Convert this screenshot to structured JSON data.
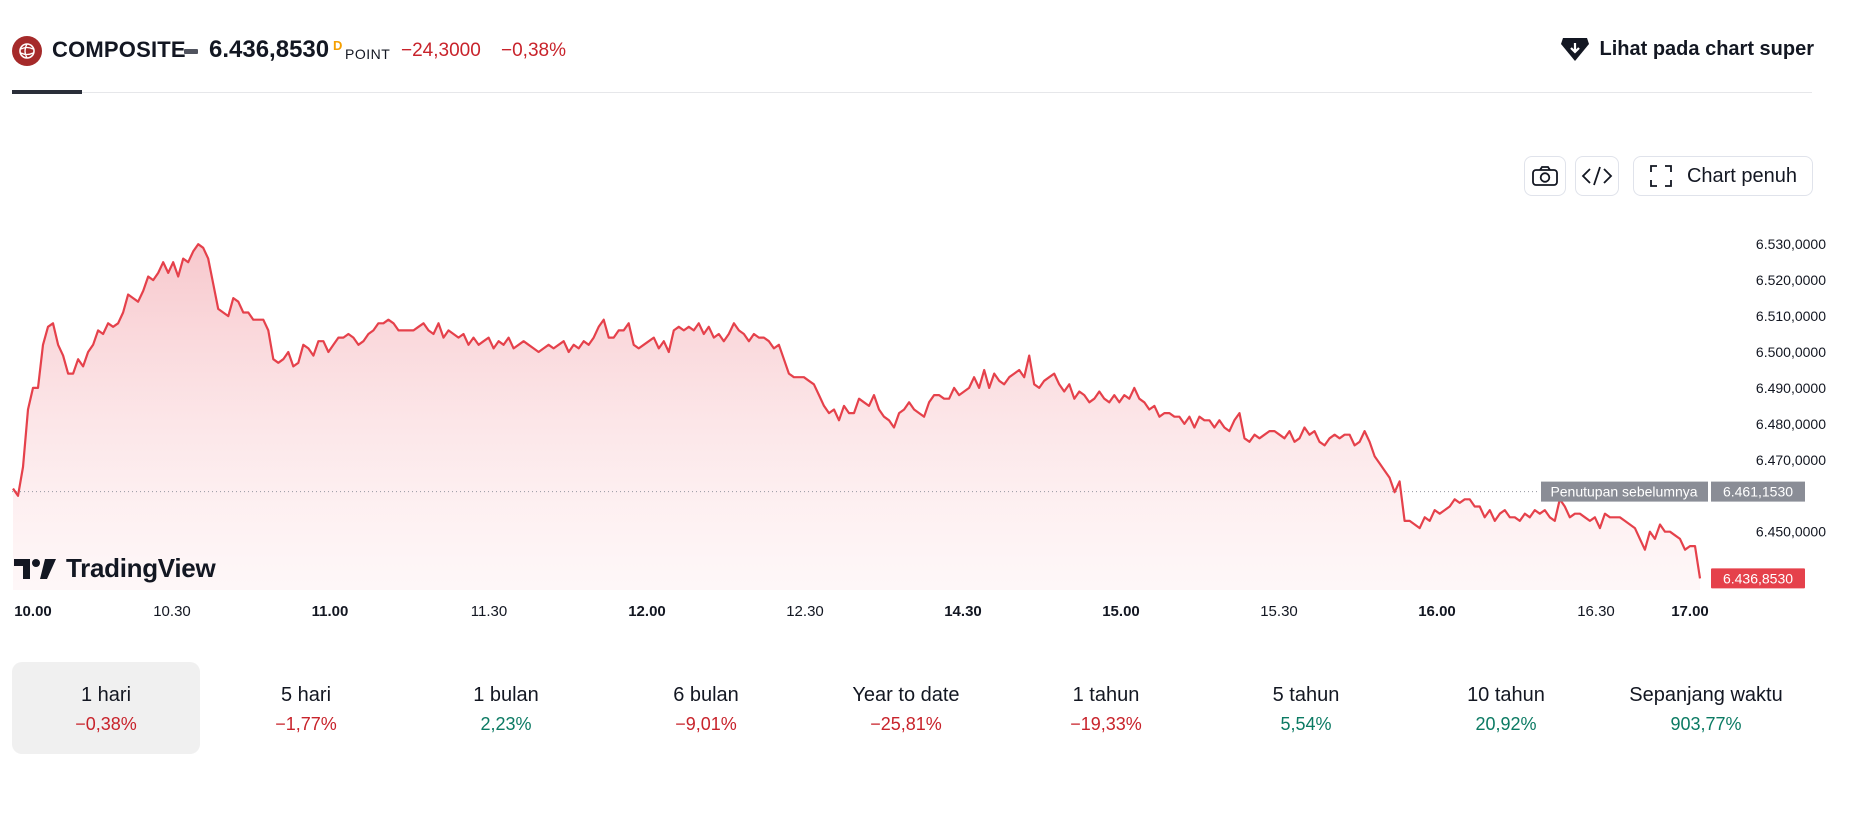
{
  "header": {
    "symbol": "COMPOSITE",
    "price": "6.436,8530",
    "price_superscript": "D",
    "unit": "POINT",
    "change": "−24,3000",
    "change_percent": "−0,38%",
    "super_chart_label": "Lihat pada chart super"
  },
  "toolbar": {
    "camera_icon": "camera-icon",
    "embed_icon": "code-embed-icon",
    "fullscreen_icon": "fullscreen-icon",
    "fullscreen_label": "Chart penuh"
  },
  "branding": {
    "name": "TradingView"
  },
  "chart_data": {
    "type": "area",
    "line_color": "#e5414b",
    "fill_color": "#f7c5ca",
    "x_ticks": [
      {
        "label": "10.00",
        "bold": true
      },
      {
        "label": "10.30",
        "bold": false
      },
      {
        "label": "11.00",
        "bold": true
      },
      {
        "label": "11.30",
        "bold": false
      },
      {
        "label": "12.00",
        "bold": true
      },
      {
        "label": "12.30",
        "bold": false
      },
      {
        "label": "14.30",
        "bold": true
      },
      {
        "label": "15.00",
        "bold": true
      },
      {
        "label": "15.30",
        "bold": false
      },
      {
        "label": "16.00",
        "bold": true
      },
      {
        "label": "16.30",
        "bold": false
      },
      {
        "label": "17.00",
        "bold": true
      }
    ],
    "y_ticks": [
      "6.530,0000",
      "6.520,0000",
      "6.510,0000",
      "6.500,0000",
      "6.490,0000",
      "6.480,0000",
      "6.470,0000",
      "6.450,0000"
    ],
    "y_tick_values": [
      6530,
      6520,
      6510,
      6500,
      6490,
      6480,
      6470,
      6450
    ],
    "ylim": [
      6436,
      6532
    ],
    "previous_close": {
      "label": "Penutupan sebelumnya",
      "value": 6461.153,
      "value_label": "6.461,1530"
    },
    "last_price_label": "6.436,8530",
    "series": [
      {
        "values": [
          6462,
          6460,
          6468,
          6484,
          6490,
          6490,
          6502,
          6507,
          6508,
          6502,
          6499,
          6494,
          6494,
          6498,
          6496,
          6500,
          6502,
          6506,
          6505,
          6508,
          6507,
          6508,
          6511,
          6516,
          6515,
          6514,
          6517,
          6521,
          6520,
          6522,
          6525,
          6522,
          6525,
          6521,
          6526,
          6525,
          6528,
          6530,
          6529,
          6526,
          6519,
          6512,
          6511,
          6510,
          6515,
          6514,
          6511,
          6511,
          6509,
          6509,
          6509,
          6506,
          6498,
          6497,
          6498,
          6500,
          6496,
          6497,
          6502,
          6501,
          6499,
          6503,
          6503,
          6500,
          6502,
          6504,
          6504,
          6505,
          6504,
          6502,
          6503,
          6505,
          6506,
          6508,
          6508,
          6509,
          6508,
          6506,
          6506,
          6506,
          6506,
          6507,
          6508,
          6506,
          6505,
          6508,
          6504,
          6506,
          6505,
          6504,
          6505,
          6502,
          6504,
          6502,
          6503,
          6504,
          6501,
          6503,
          6502,
          6504,
          6501,
          6502,
          6503,
          6502,
          6501,
          6500,
          6501,
          6502,
          6501,
          6502,
          6503,
          6500,
          6502,
          6501,
          6503,
          6502,
          6504,
          6507,
          6509,
          6504,
          6504,
          6506,
          6506,
          6508,
          6502,
          6501,
          6502,
          6503,
          6504,
          6501,
          6503,
          6500,
          6506,
          6507,
          6506,
          6507,
          6506,
          6508,
          6505,
          6507,
          6504,
          6505,
          6503,
          6505,
          6508,
          6506,
          6505,
          6503,
          6505,
          6504,
          6504,
          6503,
          6501,
          6502,
          6498,
          6494,
          6493,
          6493,
          6493,
          6492,
          6491,
          6488,
          6485,
          6483,
          6484,
          6481,
          6485,
          6483,
          6483,
          6487,
          6486,
          6485,
          6488,
          6484,
          6482,
          6481,
          6479,
          6483,
          6484,
          6486,
          6484,
          6483,
          6482,
          6486,
          6488,
          6488,
          6487,
          6487,
          6490,
          6488,
          6489,
          6490,
          6493,
          6490,
          6495,
          6490,
          6494,
          6492,
          6491,
          6493,
          6494,
          6495,
          6493,
          6499,
          6491,
          6490,
          6492,
          6493,
          6494,
          6491,
          6489,
          6491,
          6487,
          6489,
          6488,
          6486,
          6487,
          6489,
          6487,
          6486,
          6488,
          6486,
          6488,
          6487,
          6490,
          6487,
          6486,
          6484,
          6485,
          6482,
          6483,
          6483,
          6482,
          6482,
          6480,
          6482,
          6479,
          6482,
          6481,
          6481,
          6479,
          6481,
          6479,
          6478,
          6481,
          6483,
          6476,
          6475,
          6477,
          6476,
          6477,
          6478,
          6478,
          6477,
          6476,
          6478,
          6475,
          6476,
          6479,
          6477,
          6478,
          6475,
          6474,
          6476,
          6477,
          6476,
          6477,
          6477,
          6474,
          6475,
          6478,
          6475,
          6471,
          6469,
          6467,
          6465,
          6461,
          6464,
          6453,
          6453,
          6452,
          6451,
          6454,
          6453,
          6456,
          6455,
          6456,
          6457,
          6459,
          6458,
          6459,
          6459,
          6457,
          6457,
          6454,
          6456,
          6453,
          6455,
          6456,
          6454,
          6454,
          6453,
          6455,
          6454,
          6456,
          6455,
          6456,
          6454,
          6453,
          6459,
          6457,
          6454,
          6455,
          6455,
          6454,
          6453,
          6454,
          6451,
          6455,
          6454,
          6454,
          6454,
          6453,
          6452,
          6451,
          6448,
          6445,
          6450,
          6448,
          6452,
          6450,
          6450,
          6449,
          6448,
          6445,
          6446,
          6446,
          6437
        ]
      }
    ]
  },
  "ranges": [
    {
      "label": "1 hari",
      "value": "−0,38%",
      "dir": "neg",
      "active": true
    },
    {
      "label": "5 hari",
      "value": "−1,77%",
      "dir": "neg",
      "active": false
    },
    {
      "label": "1 bulan",
      "value": "2,23%",
      "dir": "pos",
      "active": false
    },
    {
      "label": "6 bulan",
      "value": "−9,01%",
      "dir": "neg",
      "active": false
    },
    {
      "label": "Year to date",
      "value": "−25,81%",
      "dir": "neg",
      "active": false
    },
    {
      "label": "1 tahun",
      "value": "−19,33%",
      "dir": "neg",
      "active": false
    },
    {
      "label": "5 tahun",
      "value": "5,54%",
      "dir": "pos",
      "active": false
    },
    {
      "label": "10 tahun",
      "value": "20,92%",
      "dir": "pos",
      "active": false
    },
    {
      "label": "Sepanjang waktu",
      "value": "903,77%",
      "dir": "pos",
      "active": false
    }
  ]
}
